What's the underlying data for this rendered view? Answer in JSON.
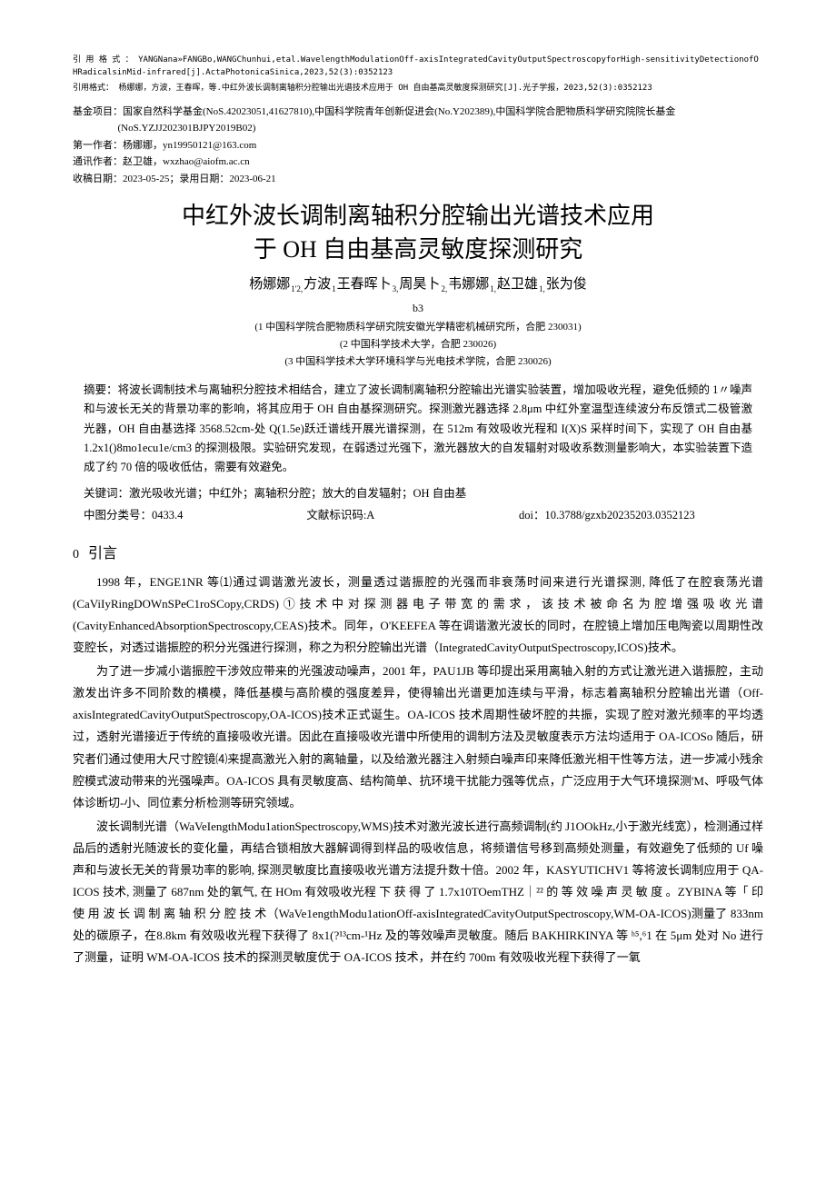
{
  "citation": {
    "en_prefix": "引 用 格 式 ：",
    "en_body": "YANGNana»FANGBo,WANGChunhui,etal.WavelengthModulationOff-axisIntegratedCavityOutputSpectroscopyforHigh-sensitivityDetectionofOHRadicalsinMid-infrared[j].ActaPhotonicaSinica,2023,52(3):0352123",
    "cn_prefix": "引用格式：",
    "cn_body": "杨娜娜，方波，王春晖，等.中红外波长调制离轴积分腔输出光谱技术应用于 OH 自由基高灵敏度探测研究[J].光子学报，2023,52(3):0352123"
  },
  "funding": {
    "label": "基金项目：",
    "text": "国家自然科学基金(NoS.42023051,41627810),中国科学院青年创新促进会(No.Y202389),中国科学院合肥物质科学研究院院长基金",
    "text2": "(NoS.YZJJ202301BJPY2019B02)"
  },
  "first_author": {
    "label": "第一作者：",
    "text": "杨娜娜，yn19950121@163.com"
  },
  "corr_author": {
    "label": "通讯作者：",
    "text": "赵卫雄，wxzhao@aiofm.ac.cn"
  },
  "dates": {
    "label": "收稿日期：",
    "text": "2023-05-25；录用日期：2023-06-21"
  },
  "title": {
    "line1": "中红外波长调制离轴积分腔输出光谱技术应用",
    "line2": "于 OH 自由基高灵敏度探测研究"
  },
  "authors": {
    "line1_parts": [
      {
        "name": "杨娜娜",
        "sup": "1'2,"
      },
      {
        "name": "方波",
        "sup": "1"
      },
      {
        "name": "王春晖卜",
        "sup": "3,"
      },
      {
        "name": "周昊卜",
        "sup": "2,"
      },
      {
        "name": "韦娜娜",
        "sup": "1,"
      },
      {
        "name": "赵卫雄",
        "sup": "1,"
      },
      {
        "name": "张为俊",
        "sup": ""
      }
    ],
    "line2": "b3"
  },
  "affiliations": [
    "(1 中国科学院合肥物质科学研究院安徽光学精密机械研究所，合肥 230031)",
    "(2 中国科学技术大学，合肥 230026)",
    "(3 中国科学技术大学环境科学与光电技术学院，合肥 230026)"
  ],
  "abstract": {
    "label": "摘要：",
    "body": "将波长调制技术与离轴积分腔技术相结合，建立了波长调制离轴积分腔输出光谱实验装置，增加吸收光程，避免低频的 1〃噪声和与波长无关的背景功率的影响，将其应用于 OH 自由基探测研究。探测激光器选择 2.8μm 中红外室温型连续波分布反馈式二极管激光器，OH 自由基选择 3568.52cm-处 Q(1.5e)跃迁谱线开展光谱探测，在 512m 有效吸收光程和 I(X)S 采样时间下，实现了 OH 自由基1.2x1()8mo1ecu1e/cm3 的探测极限。实验研究发现，在弱透过光强下，激光器放大的自发辐射对吸收系数测量影响大，本实验装置下造成了约 70 倍的吸收低估，需要有效避免。"
  },
  "keywords": {
    "label": "关键词：",
    "text": "激光吸收光谱；中红外；离轴积分腔；放大的自发辐射；OH 自由基"
  },
  "clc": {
    "a": "中图分类号：0433.4",
    "b": "文献标识码:A",
    "c": "doi：10.3788/gzxb20235203.0352123"
  },
  "section0": {
    "num": "0",
    "title": "引言"
  },
  "paras": {
    "p1": "1998 年，ENGE1NR 等⑴通过调谐激光波长，测量透过谐振腔的光强而非衰荡时间来进行光谱探测, 降低了在腔衰荡光谱(CaViIyRingDOWnSPeC1roSCopy,CRDS)①技术中对探测器电子带宽的需求，该技术被命名为腔增强吸收光谱(CavityEnhancedAbsorptionSpectroscopy,CEAS)技术。同年，O'KEEFEA 等在调谐激光波长的同时，在腔镜上增加压电陶瓷以周期性改变腔长，对透过谐振腔的积分光强进行探测，称之为积分腔输出光谱（IntegratedCavityOutputSpectroscopy,ICOS)技术。",
    "p2": "为了进一步减小谐振腔干涉效应带来的光强波动噪声，2001 年，PAU1JB 等印提出采用离轴入射的方式让激光进入谐振腔，主动激发出许多不同阶数的横模，降低基模与高阶模的强度差异，使得输出光谱更加连续与平滑，标志着离轴积分腔输出光谱（Off-axisIntegratedCavityOutputSpectroscopy,OA-ICOS)技术正式诞生。OA-ICOS 技术周期性破坏腔的共振，实现了腔对激光频率的平均透过，透射光谱接近于传统的直接吸收光谱。因此在直接吸收光谱中所使用的调制方法及灵敏度表示方法均适用于 OA-ICOSo 随后，研究者们通过使用大尺寸腔镜⑷来提高激光入射的离轴量，以及给激光器注入射频白噪声印来降低激光相干性等方法，进一步减小残余腔模式波动带来的光强噪声。OA-ICOS 具有灵敏度高、结构简单、抗环境干扰能力强等优点，广泛应用于大气环境探测'M、呼吸气体体诊断切-小、同位素分析检测等研究领域。",
    "p3": "波长调制光谱（WaVeIengthModu1ationSpectroscopy,WMS)技术对激光波长进行高频调制(约 J1OOkHz,小于激光线宽），检测通过样品后的透射光随波长的变化量，再结合锁相放大器解调得到样品的吸收信息，将频谱信号移到高频处测量，有效避免了低频的 Uf 噪声和与波长无关的背景功率的影响, 探测灵敏度比直接吸收光谱方法提升数十倍。2002 年，KASYUTICHV1 等将波长调制应用于 QA-ICOS 技术, 测量了 687nm 处的氧气, 在 HOm 有效吸收光程 下 获 得 了 1.7x10TOemTHZ｜²² 的 等 效 噪 声 灵 敏 度 。ZYBINA 等「 印 使 用 波 长 调 制 离 轴 积 分 腔 技 术（WaVe1engthModu1ationOff-axisIntegratedCavityOutputSpectroscopy,WM-OA-ICOS)测量了 833nm 处的碳原子，在8.8km 有效吸收光程下获得了 8x1(?¹³cm-¹Hz 及的等效噪声灵敏度。随后 BAKHIRKINYA 等 ʰ⁵,⁶1 在 5μm 处对 No 进行了测量，证明 WM-OA-ICOS 技术的探测灵敏度优于 OA-ICOS 技术，并在约 700m 有效吸收光程下获得了一氧"
  }
}
